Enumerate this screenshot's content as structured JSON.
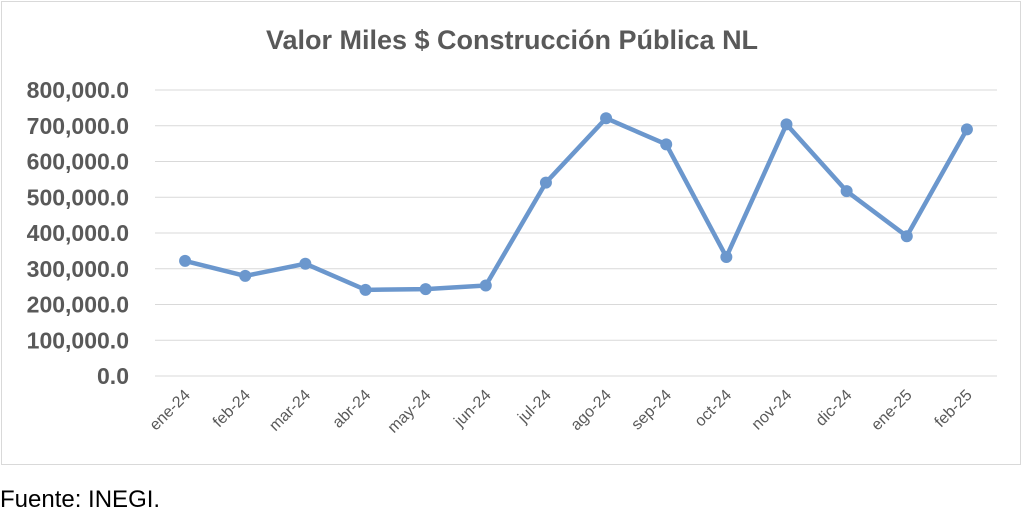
{
  "chart_data": {
    "type": "line",
    "title": "Valor Miles $ Construcción Pública NL",
    "xlabel": "",
    "ylabel": "",
    "categories": [
      "ene-24",
      "feb-24",
      "mar-24",
      "abr-24",
      "may-24",
      "jun-24",
      "jul-24",
      "ago-24",
      "sep-24",
      "oct-24",
      "nov-24",
      "dic-24",
      "ene-25",
      "feb-25"
    ],
    "series": [
      {
        "values": [
          322000,
          280000,
          314000,
          241000,
          243000,
          253000,
          541000,
          721000,
          648000,
          333000,
          704000,
          517000,
          391000,
          690000
        ]
      }
    ],
    "ylim": [
      0,
      800000
    ],
    "yticks": [
      "0.0",
      "100,000.0",
      "200,000.0",
      "300,000.0",
      "400,000.0",
      "500,000.0",
      "600,000.0",
      "700,000.0",
      "800,000.0"
    ],
    "grid": true,
    "legend": "none",
    "line_color": "#6b97cd",
    "grid_color": "#d9d9d9"
  },
  "footer": {
    "source": "Fuente: INEGI."
  }
}
